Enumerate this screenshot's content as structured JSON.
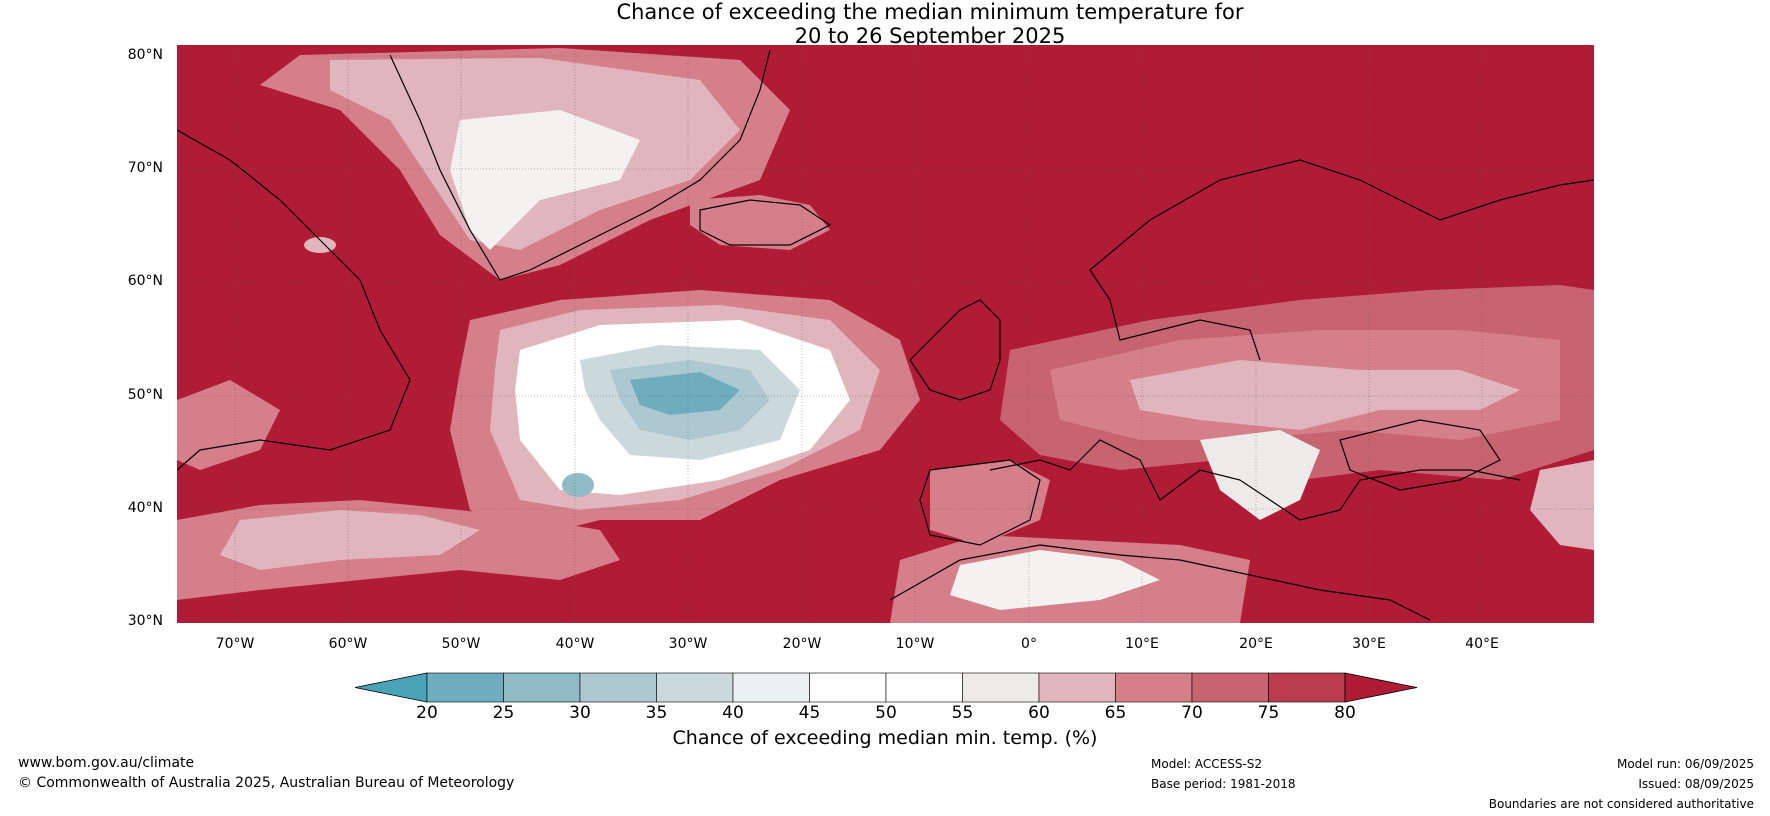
{
  "title_line1": "Chance of exceeding the median minimum temperature for",
  "title_line2": "20 to 26 September 2025",
  "lat_labels": [
    "80°N",
    "70°N",
    "60°N",
    "50°N",
    "40°N",
    "30°N"
  ],
  "lon_labels": [
    "70°W",
    "60°W",
    "50°W",
    "40°W",
    "30°W",
    "20°W",
    "10°W",
    "0°",
    "10°E",
    "20°E",
    "30°E",
    "40°E"
  ],
  "colorbar": {
    "ticks": [
      "20",
      "25",
      "30",
      "35",
      "40",
      "45",
      "50",
      "55",
      "60",
      "65",
      "70",
      "75",
      "80"
    ],
    "colors": [
      "#4aa3b6",
      "#6eadbd",
      "#8fbac6",
      "#adc8d0",
      "#cbd9dc",
      "#e9f1f2",
      "#ffffff",
      "#ffffff",
      "#ecebe9",
      "#e0b5bb",
      "#d47f8a",
      "#c86470",
      "#bb3c4d",
      "#b01c36"
    ],
    "title": "Chance of exceeding median min. temp. (%)"
  },
  "footer": {
    "website": "www.bom.gov.au/climate",
    "copyright": "© Commonwealth of Australia 2025, Australian Bureau of Meteorology",
    "model": "Model: ACCESS-S2",
    "base_period": "Base period: 1981-2018",
    "model_run": "Model run: 06/09/2025",
    "issued": "Issued: 08/09/2025",
    "boundaries": "Boundaries are not considered authoritative"
  }
}
